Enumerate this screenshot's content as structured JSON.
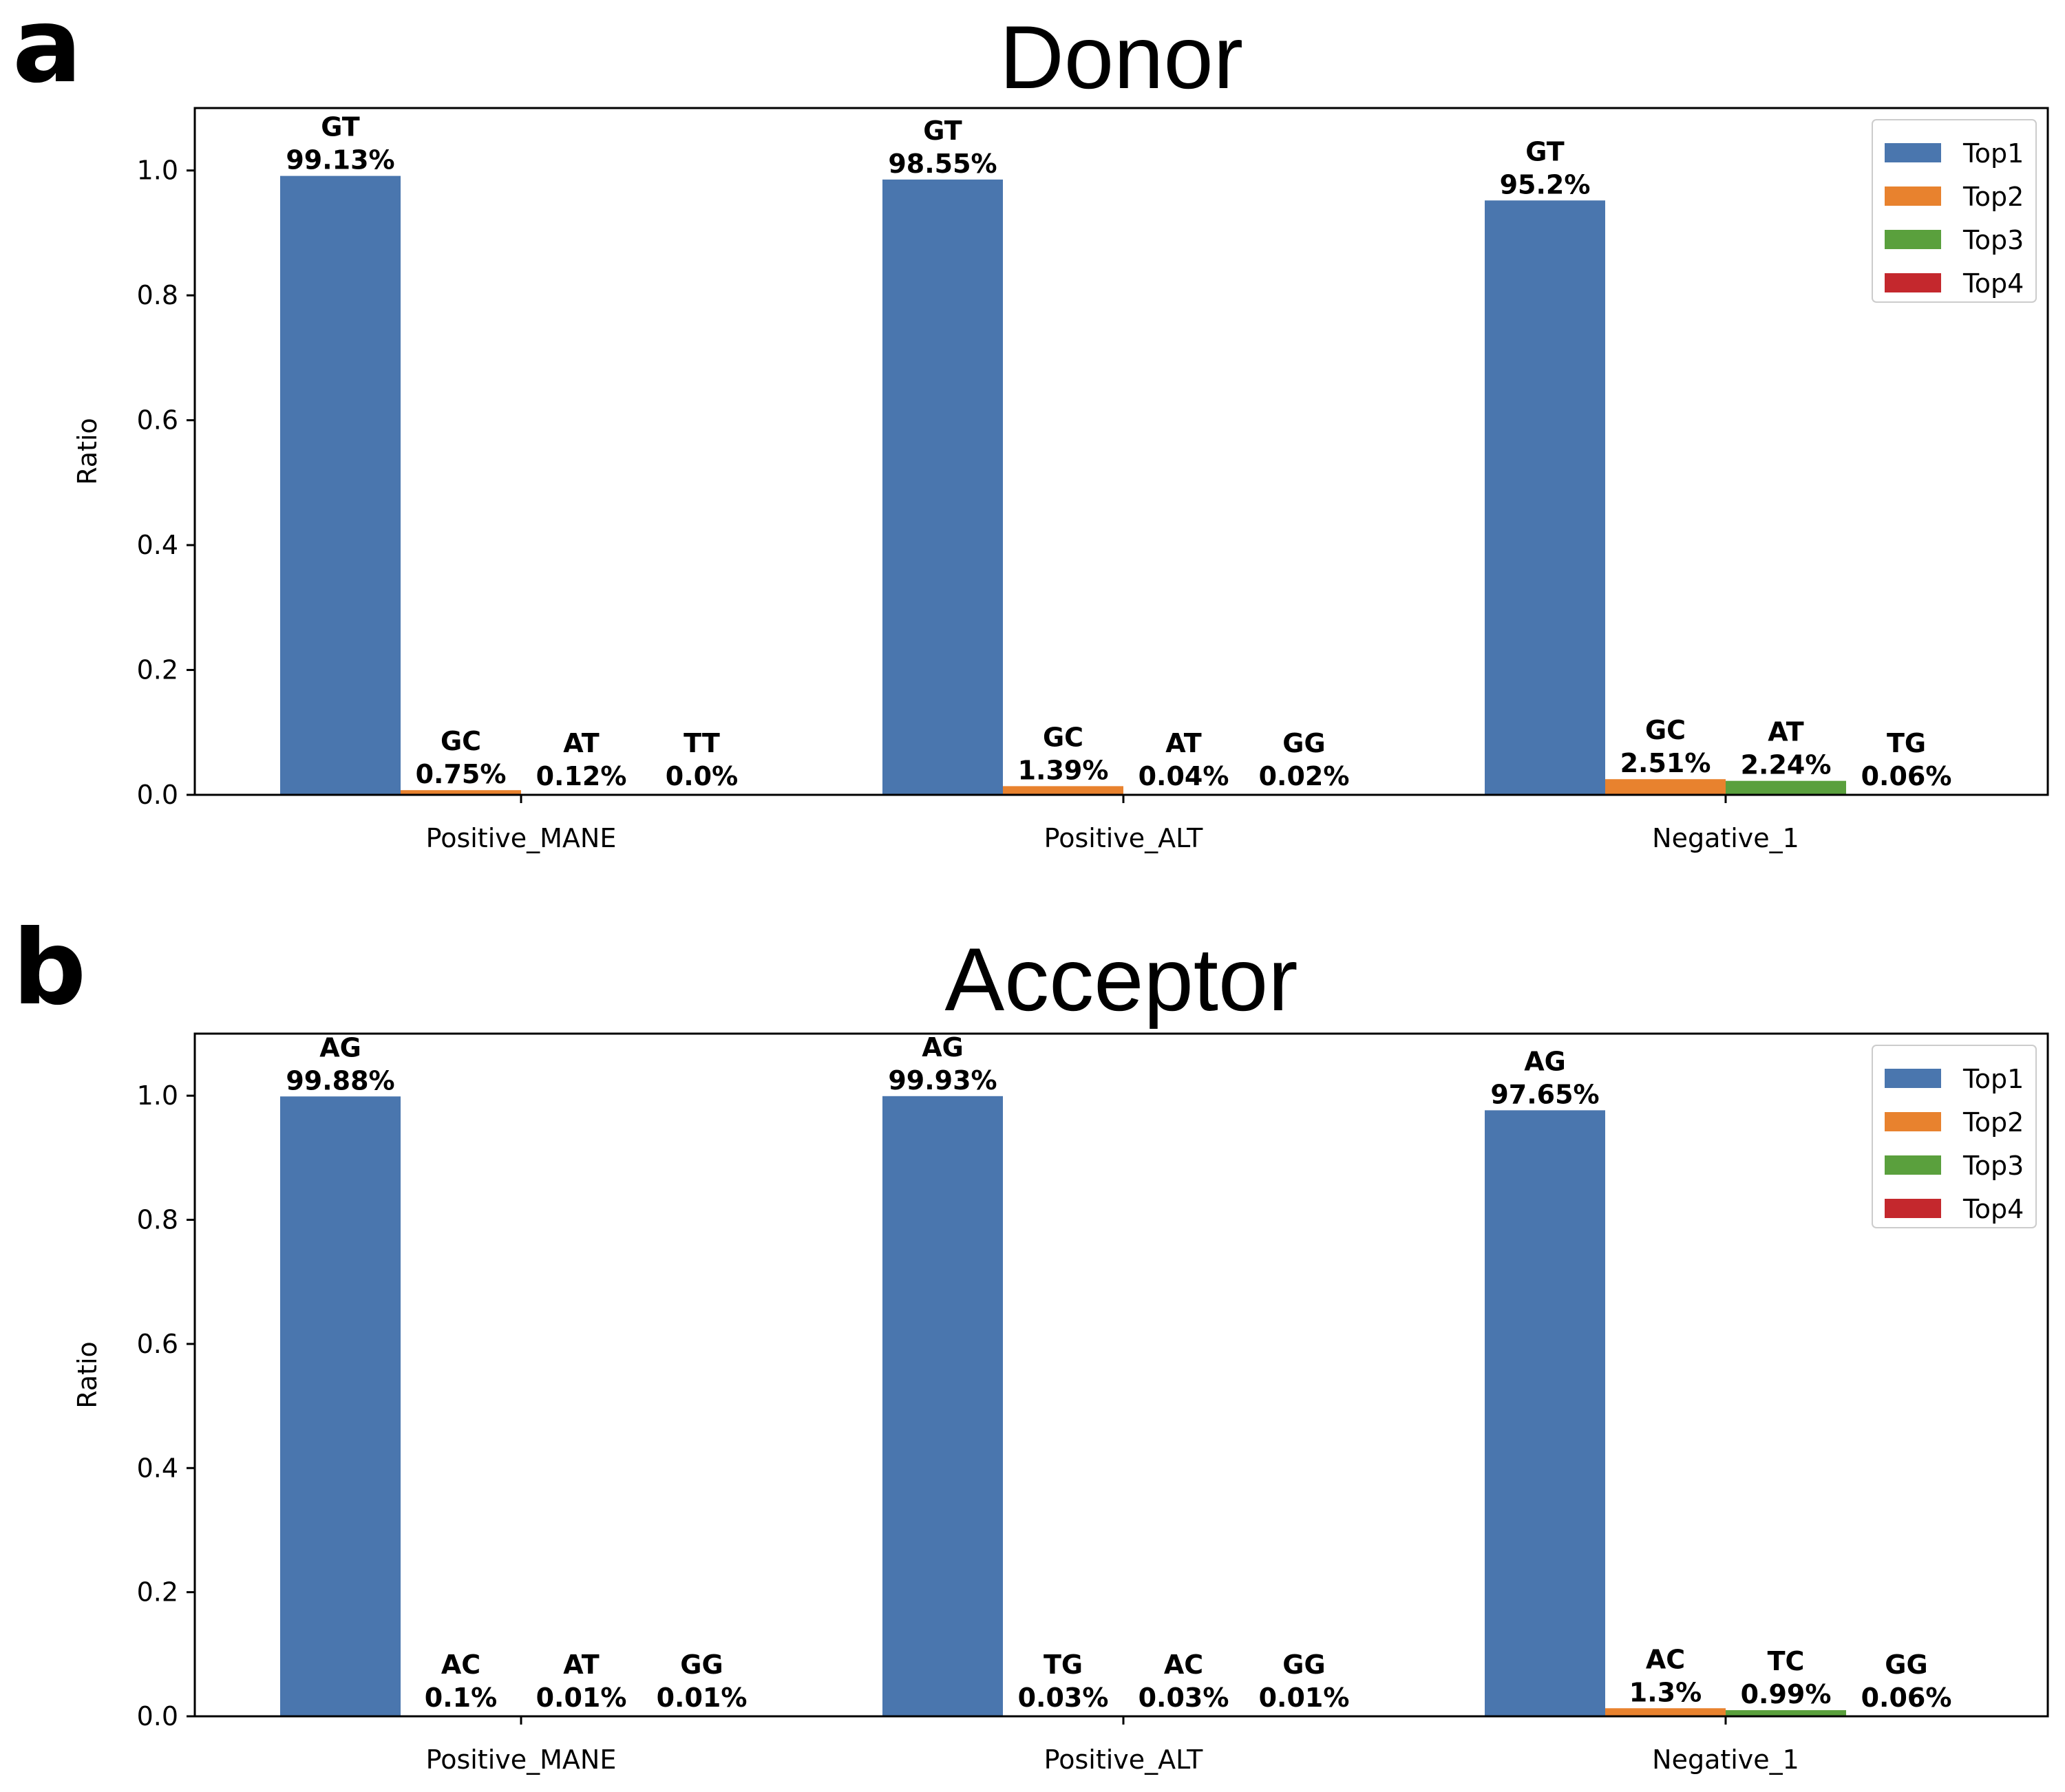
{
  "panels": [
    {
      "letter": "a"
    },
    {
      "letter": "b"
    }
  ],
  "chart_data": [
    {
      "type": "bar",
      "title": "Donor",
      "xlabel": "",
      "ylabel": "Ratio",
      "ylim": [
        0,
        1.1
      ],
      "yticks": [
        "0.0",
        "0.2",
        "0.4",
        "0.6",
        "0.8",
        "1.0"
      ],
      "categories": [
        "Positive_MANE",
        "Positive_ALT",
        "Negative_1"
      ],
      "legend_position": "top-right",
      "grid": false,
      "series": [
        {
          "name": "Top1",
          "color": "#4a76ae",
          "values": [
            0.9913,
            0.9855,
            0.952
          ],
          "motifs": [
            "GT",
            "GT",
            "GT"
          ],
          "labels": [
            "99.13%",
            "98.55%",
            "95.2%"
          ]
        },
        {
          "name": "Top2",
          "color": "#e8822e",
          "values": [
            0.0075,
            0.0139,
            0.0251
          ],
          "motifs": [
            "GC",
            "GC",
            "GC"
          ],
          "labels": [
            "0.75%",
            "1.39%",
            "2.51%"
          ]
        },
        {
          "name": "Top3",
          "color": "#5aa03d",
          "values": [
            0.0012,
            0.0004,
            0.0224
          ],
          "motifs": [
            "AT",
            "AT",
            "AT"
          ],
          "labels": [
            "0.12%",
            "0.04%",
            "2.24%"
          ]
        },
        {
          "name": "Top4",
          "color": "#c4282d",
          "values": [
            0.0,
            0.0002,
            0.0006
          ],
          "motifs": [
            "TT",
            "GG",
            "TG"
          ],
          "labels": [
            "0.0%",
            "0.02%",
            "0.06%"
          ]
        }
      ]
    },
    {
      "type": "bar",
      "title": "Acceptor",
      "xlabel": "",
      "ylabel": "Ratio",
      "ylim": [
        0,
        1.1
      ],
      "yticks": [
        "0.0",
        "0.2",
        "0.4",
        "0.6",
        "0.8",
        "1.0"
      ],
      "categories": [
        "Positive_MANE",
        "Positive_ALT",
        "Negative_1"
      ],
      "legend_position": "top-right",
      "grid": false,
      "series": [
        {
          "name": "Top1",
          "color": "#4a76ae",
          "values": [
            0.9988,
            0.9993,
            0.9765
          ],
          "motifs": [
            "AG",
            "AG",
            "AG"
          ],
          "labels": [
            "99.88%",
            "99.93%",
            "97.65%"
          ]
        },
        {
          "name": "Top2",
          "color": "#e8822e",
          "values": [
            0.001,
            0.0003,
            0.013
          ],
          "motifs": [
            "AC",
            "TG",
            "AC"
          ],
          "labels": [
            "0.1%",
            "0.03%",
            "1.3%"
          ]
        },
        {
          "name": "Top3",
          "color": "#5aa03d",
          "values": [
            0.0001,
            0.0003,
            0.0099
          ],
          "motifs": [
            "AT",
            "AC",
            "TC"
          ],
          "labels": [
            "0.01%",
            "0.03%",
            "0.99%"
          ]
        },
        {
          "name": "Top4",
          "color": "#c4282d",
          "values": [
            0.0001,
            0.0001,
            0.0006
          ],
          "motifs": [
            "GG",
            "GG",
            "GG"
          ],
          "labels": [
            "0.01%",
            "0.01%",
            "0.06%"
          ]
        }
      ]
    }
  ]
}
